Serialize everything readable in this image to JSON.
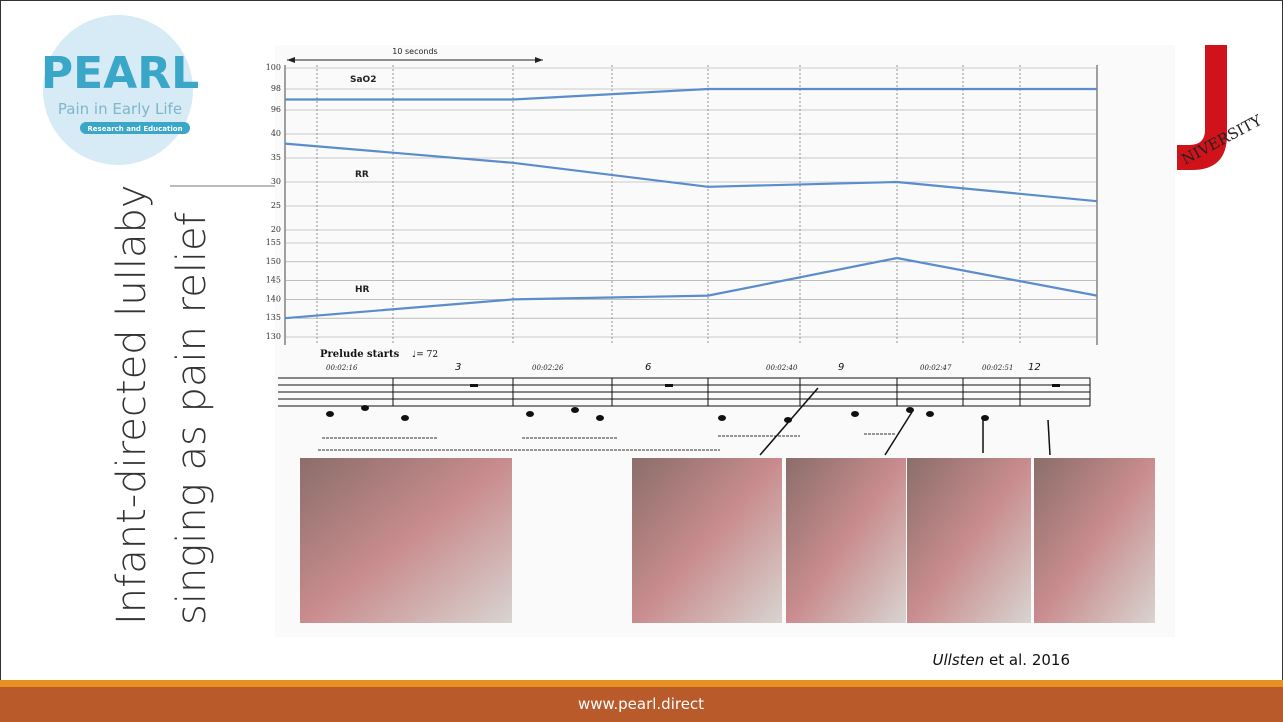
{
  "slide": {
    "title_lines": [
      "Infant-directed lullaby",
      "singing as pain relief"
    ],
    "logo": {
      "name": "PEARL",
      "tagline": "Pain in Early Life",
      "subtitle": "Research and Education"
    },
    "partner_logo_text": "NIVERSITY",
    "citation": {
      "author": "Ullsten",
      "rest": " et al. 2016"
    },
    "footer": "www.pearl.direct"
  },
  "figure": {
    "scale_label": "10 seconds",
    "prelude": "Prelude starts",
    "tempo": "♩= 72",
    "timestamps": [
      "00:02:16",
      "00:02:26",
      "00:02:40",
      "00:02:47",
      "00:02:51"
    ],
    "measures": [
      "3",
      "6",
      "9",
      "12"
    ]
  },
  "chart_data": [
    {
      "type": "line",
      "categories": [
        null,
        null,
        null,
        null,
        null
      ],
      "series": [
        {
          "name": "SaO2",
          "color": "#5b8ccc",
          "values": [
            97,
            97,
            98,
            98,
            98
          ]
        }
      ],
      "ylim": [
        96,
        100
      ],
      "yticks": [
        96,
        98,
        100
      ],
      "grid": true
    },
    {
      "type": "line",
      "categories": [
        null,
        null,
        null,
        null,
        null
      ],
      "series": [
        {
          "name": "RR",
          "color": "#5b8ccc",
          "values": [
            38,
            34,
            29,
            30,
            26
          ]
        }
      ],
      "ylim": [
        20,
        40
      ],
      "yticks": [
        20,
        25,
        30,
        35,
        40
      ],
      "grid": true
    },
    {
      "type": "line",
      "categories": [
        null,
        null,
        null,
        null,
        null
      ],
      "series": [
        {
          "name": "HR",
          "color": "#5b8ccc",
          "values": [
            135,
            140,
            141,
            151,
            141
          ]
        }
      ],
      "ylim": [
        130,
        155
      ],
      "yticks": [
        130,
        135,
        140,
        145,
        150,
        155
      ],
      "grid": true
    }
  ]
}
